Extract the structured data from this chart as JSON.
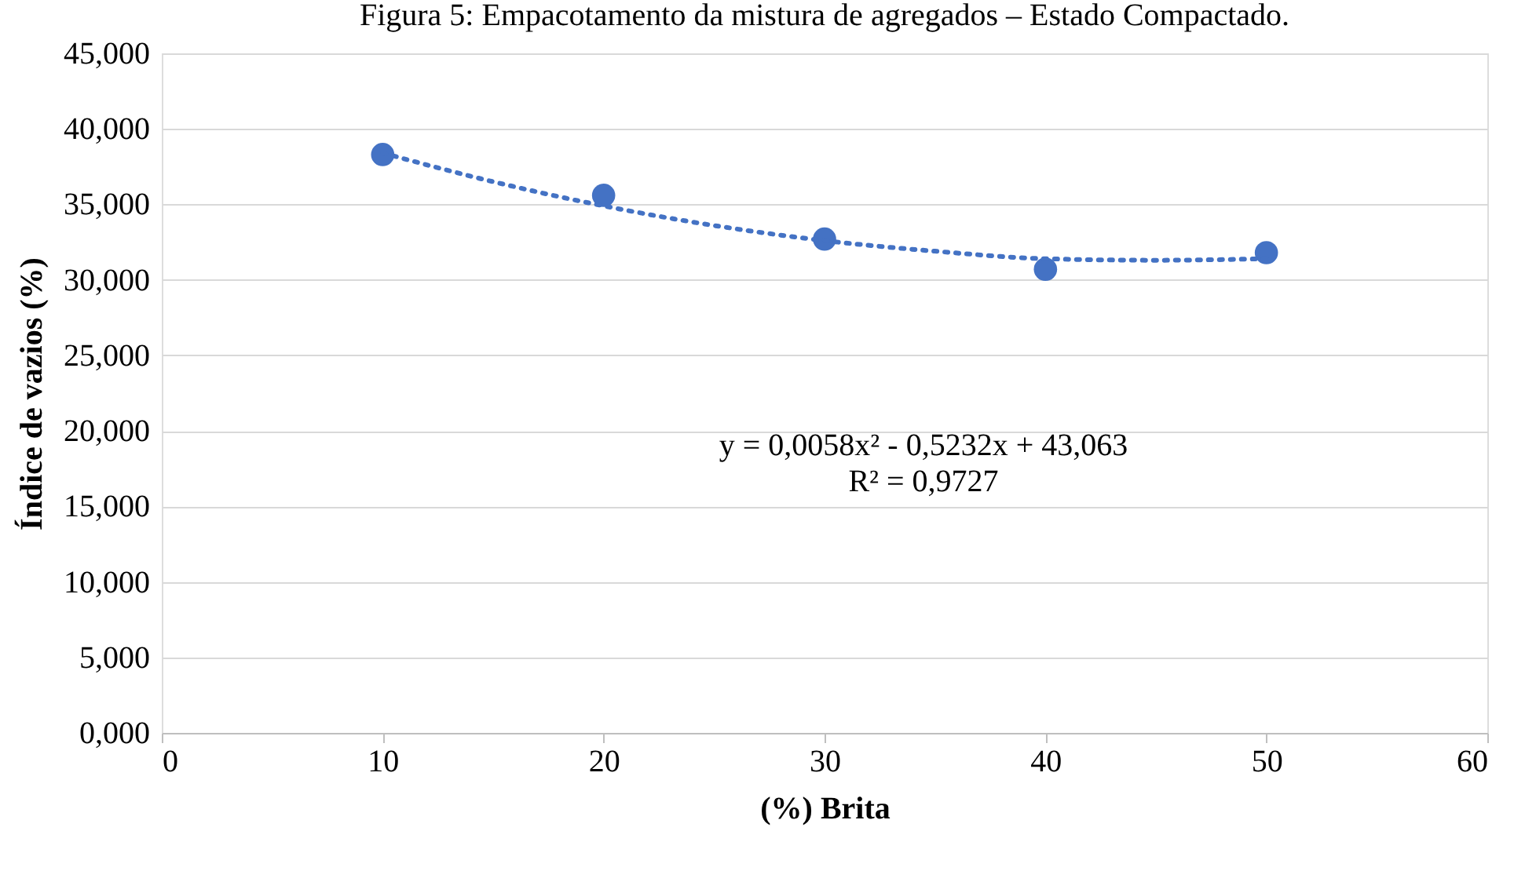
{
  "chart_data": {
    "type": "scatter",
    "title": "Figura 5: Empacotamento da mistura de agregados – Estado Compactado.",
    "xlabel": "(%) Brita",
    "ylabel": "Índice de vazios  (%)",
    "x": [
      10,
      20,
      30,
      40,
      50
    ],
    "series": [
      {
        "color": "#4472c4",
        "marker": "circle",
        "values": [
          38.3,
          35.6,
          32.7,
          30.7,
          31.8
        ]
      },
      {
        "type": "line",
        "color": "#4472c4",
        "line_style": "dotted",
        "marker": "none",
        "x": [
          10,
          15,
          20,
          25,
          30,
          35,
          40,
          45,
          50
        ],
        "values": [
          38.4,
          36.5,
          34.9,
          33.6,
          32.6,
          31.9,
          31.4,
          31.3,
          31.4
        ]
      }
    ],
    "xlim": [
      0,
      60
    ],
    "xticks": [
      0,
      10,
      20,
      30,
      40,
      50,
      60
    ],
    "ylim": [
      0,
      45
    ],
    "yticks": [
      {
        "value": 0,
        "label": "0,000"
      },
      {
        "value": 5,
        "label": "5,000"
      },
      {
        "value": 10,
        "label": "10,000"
      },
      {
        "value": 15,
        "label": "15,000"
      },
      {
        "value": 20,
        "label": "20,000"
      },
      {
        "value": 25,
        "label": "25,000"
      },
      {
        "value": 30,
        "label": "30,000"
      },
      {
        "value": 35,
        "label": "35,000"
      },
      {
        "value": 40,
        "label": "40,000"
      },
      {
        "value": 45,
        "label": "45,000"
      }
    ],
    "grid": "y",
    "legend": false,
    "annotations": [
      "y = 0,0058x² - 0,5232x + 43,063",
      "R² = 0,9727"
    ]
  }
}
